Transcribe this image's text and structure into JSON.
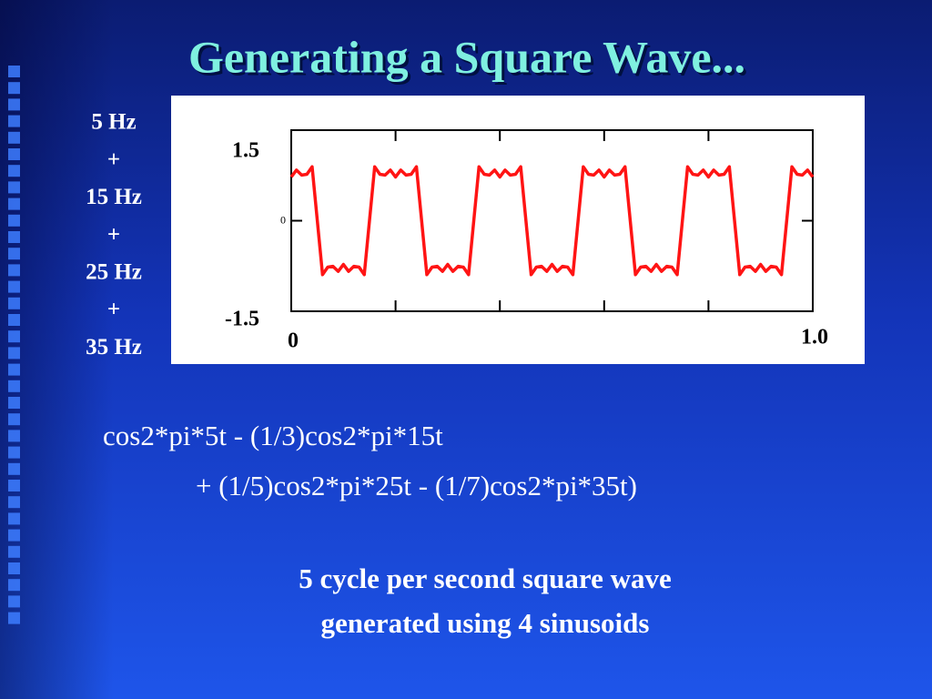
{
  "slide": {
    "title": "Generating a Square Wave...",
    "terms": [
      "5 Hz",
      "+",
      "15 Hz",
      "+",
      "25 Hz",
      "+",
      "35 Hz"
    ],
    "equation": [
      "cos2*pi*5t - (1/3)cos2*pi*15t",
      "+ (1/5)cos2*pi*25t - (1/7)cos2*pi*35t)"
    ],
    "caption": [
      "5 cycle per second square wave",
      "generated using 4 sinusoids"
    ]
  },
  "chart_data": {
    "type": "line",
    "color": "#ff1414",
    "xlim": [
      0,
      1
    ],
    "ylim": [
      -1.5,
      1.5
    ],
    "xticks": [
      0,
      {
        "value": 0.2,
        "label": null
      },
      {
        "value": 0.4,
        "label": null
      },
      {
        "value": 0.6,
        "label": null
      },
      {
        "value": 0.8,
        "label": null
      },
      {
        "value": 1,
        "label": "1.0"
      }
    ],
    "yticks": [
      1.5,
      0,
      -1.5
    ],
    "x": [
      0,
      0.01,
      0.02,
      0.03,
      0.04,
      0.05,
      0.06,
      0.07,
      0.08,
      0.09,
      0.1,
      0.11,
      0.12,
      0.13,
      0.14,
      0.15,
      0.16,
      0.17,
      0.18,
      0.19,
      0.2,
      0.21,
      0.22,
      0.23,
      0.24,
      0.25,
      0.26,
      0.27,
      0.28,
      0.29,
      0.3,
      0.31,
      0.32,
      0.33,
      0.34,
      0.35,
      0.36,
      0.37,
      0.38,
      0.39,
      0.4,
      0.41,
      0.42,
      0.43,
      0.44,
      0.45,
      0.46,
      0.47,
      0.48,
      0.49,
      0.5,
      0.51,
      0.52,
      0.53,
      0.54,
      0.55,
      0.56,
      0.57,
      0.58,
      0.59,
      0.6,
      0.61,
      0.62,
      0.63,
      0.64,
      0.65,
      0.66,
      0.67,
      0.68,
      0.69,
      0.7,
      0.71,
      0.72,
      0.73,
      0.74,
      0.75,
      0.76,
      0.77,
      0.78,
      0.79,
      0.8,
      0.81,
      0.82,
      0.83,
      0.84,
      0.85,
      0.86,
      0.87,
      0.88,
      0.89,
      0.9,
      0.91,
      0.92,
      0.93,
      0.94,
      0.95,
      0.96,
      0.97,
      0.98,
      0.99,
      1
    ],
    "values": [
      0.724,
      0.839,
      0.756,
      0.769,
      0.894,
      0,
      -0.894,
      -0.769,
      -0.756,
      -0.839,
      -0.724,
      -0.839,
      -0.756,
      -0.769,
      -0.894,
      0,
      0.894,
      0.769,
      0.756,
      0.839,
      0.724,
      0.839,
      0.756,
      0.769,
      0.894,
      0,
      -0.894,
      -0.769,
      -0.756,
      -0.839,
      -0.724,
      -0.839,
      -0.756,
      -0.769,
      -0.894,
      0,
      0.894,
      0.769,
      0.756,
      0.839,
      0.724,
      0.839,
      0.756,
      0.769,
      0.894,
      0,
      -0.894,
      -0.769,
      -0.756,
      -0.839,
      -0.724,
      -0.839,
      -0.756,
      -0.769,
      -0.894,
      0,
      0.894,
      0.769,
      0.756,
      0.839,
      0.724,
      0.839,
      0.756,
      0.769,
      0.894,
      0,
      -0.894,
      -0.769,
      -0.756,
      -0.839,
      -0.724,
      -0.839,
      -0.756,
      -0.769,
      -0.894,
      0,
      0.894,
      0.769,
      0.756,
      0.839,
      0.724,
      0.839,
      0.756,
      0.769,
      0.894,
      0,
      -0.894,
      -0.769,
      -0.756,
      -0.839,
      -0.724,
      -0.839,
      -0.756,
      -0.769,
      -0.894,
      0,
      0.894,
      0.769,
      0.756,
      0.839,
      0.724
    ]
  }
}
